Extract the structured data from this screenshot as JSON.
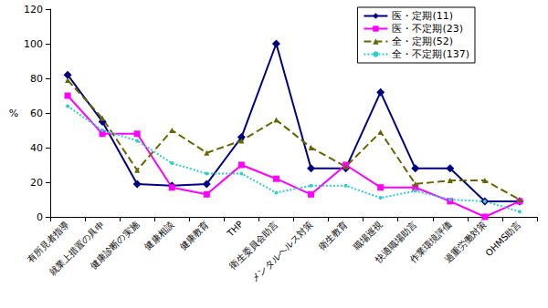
{
  "chart_data": {
    "type": "line",
    "y_label": "%",
    "categories": [
      "有所見者指導",
      "就業上措置の具申",
      "健康診断の実施",
      "健康相談",
      "健康教育",
      "THP",
      "衛生委員会助言",
      "メンタルヘルス対策",
      "衛生教育",
      "職場巡視",
      "快適職場助言",
      "作業環境評価",
      "過重労働対策",
      "OHMS助言"
    ],
    "series": [
      {
        "name": "医・定期(11)",
        "color": "#000080",
        "marker": "diamond",
        "line_style": "solid",
        "values": [
          82,
          55,
          19,
          18,
          19,
          46,
          100,
          28,
          28,
          72,
          28,
          28,
          9,
          9
        ]
      },
      {
        "name": "医・不定期(23)",
        "color": "#ff00ff",
        "marker": "square",
        "line_style": "solid",
        "values": [
          70,
          48,
          48,
          17,
          13,
          30,
          22,
          13,
          30,
          17,
          17,
          9,
          0,
          9
        ]
      },
      {
        "name": "全・定期(52)",
        "color": "#666600",
        "marker": "triangle",
        "line_style": "dashed",
        "values": [
          79,
          57,
          27,
          50,
          37,
          44,
          56,
          40,
          29,
          49,
          19,
          21,
          21,
          10
        ]
      },
      {
        "name": "全・不定期(137)",
        "color": "#33cccc",
        "marker": "circle",
        "line_style": "dotted",
        "values": [
          64,
          50,
          44,
          31,
          25,
          25,
          14,
          18,
          18,
          11,
          15,
          10,
          9,
          3
        ]
      }
    ],
    "ylim": [
      0,
      120
    ],
    "yticks": [
      0,
      20,
      40,
      60,
      80,
      100,
      120
    ],
    "grid": false,
    "legend": "upper right"
  }
}
